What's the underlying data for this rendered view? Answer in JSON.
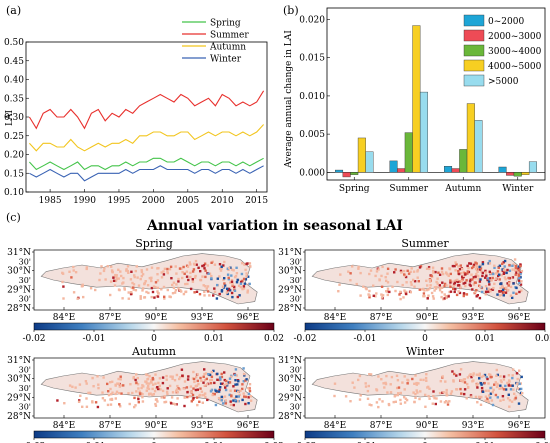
{
  "chart_data": [
    {
      "panel": "(a)",
      "type": "line",
      "ylabel": "LAI",
      "x": [
        1982,
        1983,
        1984,
        1985,
        1986,
        1987,
        1988,
        1989,
        1990,
        1991,
        1992,
        1993,
        1994,
        1995,
        1996,
        1997,
        1998,
        1999,
        2000,
        2001,
        2002,
        2003,
        2004,
        2005,
        2006,
        2007,
        2008,
        2009,
        2010,
        2011,
        2012,
        2013,
        2014,
        2015,
        2016
      ],
      "xticks": [
        "1985",
        "1990",
        "1995",
        "2000",
        "2005",
        "2010",
        "2015"
      ],
      "yticks": [
        "0.10",
        "0.15",
        "0.20",
        "0.25",
        "0.30",
        "0.35",
        "0.40",
        "0.45",
        "0.50"
      ],
      "ylim": [
        0.1,
        0.5
      ],
      "xlim": [
        1981.5,
        2016.5
      ],
      "legend_position": "top-right",
      "series": [
        {
          "name": "Spring",
          "color": "#44c44a",
          "values": [
            0.18,
            0.16,
            0.17,
            0.18,
            0.17,
            0.16,
            0.17,
            0.18,
            0.16,
            0.17,
            0.17,
            0.16,
            0.17,
            0.17,
            0.18,
            0.17,
            0.18,
            0.18,
            0.19,
            0.19,
            0.18,
            0.18,
            0.19,
            0.18,
            0.17,
            0.18,
            0.18,
            0.17,
            0.18,
            0.18,
            0.17,
            0.18,
            0.17,
            0.18,
            0.19
          ]
        },
        {
          "name": "Summer",
          "color": "#e8302d",
          "values": [
            0.3,
            0.27,
            0.31,
            0.32,
            0.3,
            0.3,
            0.32,
            0.3,
            0.27,
            0.31,
            0.32,
            0.29,
            0.31,
            0.3,
            0.32,
            0.31,
            0.33,
            0.34,
            0.35,
            0.36,
            0.35,
            0.34,
            0.36,
            0.35,
            0.33,
            0.34,
            0.35,
            0.33,
            0.36,
            0.35,
            0.33,
            0.34,
            0.33,
            0.34,
            0.37
          ]
        },
        {
          "name": "Autumn",
          "color": "#f2c51e",
          "values": [
            0.23,
            0.21,
            0.23,
            0.23,
            0.22,
            0.22,
            0.24,
            0.22,
            0.21,
            0.22,
            0.23,
            0.22,
            0.23,
            0.23,
            0.24,
            0.23,
            0.25,
            0.25,
            0.26,
            0.26,
            0.25,
            0.25,
            0.26,
            0.26,
            0.24,
            0.25,
            0.26,
            0.25,
            0.26,
            0.26,
            0.25,
            0.26,
            0.25,
            0.26,
            0.28
          ]
        },
        {
          "name": "Winter",
          "color": "#3a63b4",
          "values": [
            0.15,
            0.14,
            0.15,
            0.16,
            0.15,
            0.14,
            0.15,
            0.15,
            0.13,
            0.14,
            0.15,
            0.15,
            0.15,
            0.15,
            0.16,
            0.15,
            0.16,
            0.16,
            0.16,
            0.17,
            0.16,
            0.16,
            0.16,
            0.16,
            0.15,
            0.16,
            0.16,
            0.15,
            0.16,
            0.16,
            0.15,
            0.16,
            0.15,
            0.16,
            0.17
          ]
        }
      ]
    },
    {
      "panel": "(b)",
      "type": "bar",
      "ylabel": "Average annual change in LAI",
      "categories": [
        "Spring",
        "Summer",
        "Autumn",
        "Winter"
      ],
      "yticks": [
        "0.000",
        "0.005",
        "0.010",
        "0.015",
        "0.020"
      ],
      "ylim": [
        -0.001,
        0.0215
      ],
      "legend_position": "top-right",
      "series": [
        {
          "name": "0~2000",
          "color": "#1ea5d6",
          "values": [
            0.0003,
            0.0015,
            0.0008,
            0.0007
          ]
        },
        {
          "name": "2000~3000",
          "color": "#ee4b56",
          "values": [
            -0.0006,
            0.0005,
            0.0005,
            -0.0004
          ]
        },
        {
          "name": "3000~4000",
          "color": "#6ab73a",
          "values": [
            -0.0003,
            0.0052,
            0.003,
            -0.0005
          ]
        },
        {
          "name": "4000~5000",
          "color": "#f7cf22",
          "values": [
            0.0045,
            0.0192,
            0.009,
            -0.0003
          ]
        },
        {
          "name": ">5000",
          "color": "#98dcee",
          "values": [
            0.0027,
            0.0105,
            0.0068,
            0.0014
          ]
        }
      ]
    },
    {
      "panel": "(c)",
      "type": "heatmap",
      "title": "Annual variation in seasonal LAI",
      "lat_ticks": [
        "31°N",
        "30°N",
        "29°N",
        "28°N"
      ],
      "lat_minor": [
        "30'",
        "30'",
        "30'"
      ],
      "lon_ticks": [
        "84°E",
        "87°E",
        "90°E",
        "93°E",
        "96°E"
      ],
      "colorbar_ticks": [
        "-0.02",
        "-0.01",
        "0",
        "0.01",
        "0.02"
      ],
      "colorbar_range": [
        -0.02,
        0.02
      ],
      "maps": [
        {
          "name": "Spring",
          "intensity": 0.55
        },
        {
          "name": "Summer",
          "intensity": 1.0
        },
        {
          "name": "Autumn",
          "intensity": 0.75
        },
        {
          "name": "Winter",
          "intensity": 0.4
        }
      ]
    }
  ]
}
